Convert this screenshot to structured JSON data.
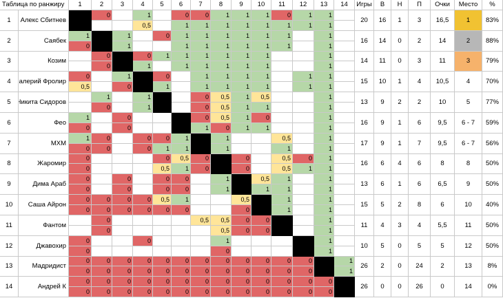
{
  "header": {
    "title": "Таблица по ранжиру",
    "cols": [
      "1",
      "2",
      "3",
      "4",
      "5",
      "6",
      "7",
      "8",
      "9",
      "10",
      "11",
      "12",
      "13",
      "14"
    ],
    "stats": [
      "Игры",
      "В",
      "Н",
      "П",
      "Очки",
      "Место",
      "%"
    ]
  },
  "colors": {
    "win": "#b6d7a8",
    "loss": "#e06666",
    "draw": "#ffe599",
    "gold": "#f1c232",
    "silver": "#b7b7b7",
    "bronze": "#f6b26b"
  },
  "rows": [
    {
      "rank": "1",
      "name": "Алекс Сбитнев",
      "games": "20",
      "w": "16",
      "d": "1",
      "l": "3",
      "pts": "16,5",
      "place": "1",
      "medal": "gold",
      "pct": "83%",
      "r": [
        [
          null,
          null
        ],
        [
          "0",
          null
        ],
        [
          null,
          null
        ],
        [
          "1",
          "0,5"
        ],
        [
          null,
          null
        ],
        [
          "0",
          "1"
        ],
        [
          "0",
          "1"
        ],
        [
          "1",
          "1"
        ],
        [
          "1",
          "1"
        ],
        [
          "1",
          "1"
        ],
        [
          "0",
          "1"
        ],
        [
          "1",
          "1"
        ],
        [
          "1",
          "1"
        ],
        [
          null,
          null
        ]
      ]
    },
    {
      "rank": "2",
      "name": "Саябек",
      "games": "16",
      "w": "14",
      "d": "0",
      "l": "2",
      "pts": "14",
      "place": "2",
      "medal": "silver",
      "pct": "88%",
      "r": [
        [
          "1",
          "0"
        ],
        [
          null,
          null
        ],
        [
          "1",
          "1"
        ],
        [
          null,
          null
        ],
        [
          "0",
          null
        ],
        [
          "1",
          "1"
        ],
        [
          "1",
          "1"
        ],
        [
          "1",
          "1"
        ],
        [
          "1",
          "1"
        ],
        [
          "1",
          "1"
        ],
        [
          "1",
          "1"
        ],
        [
          null,
          null
        ],
        [
          "1",
          "1"
        ],
        [
          null,
          null
        ]
      ]
    },
    {
      "rank": "3",
      "name": "Козим",
      "games": "14",
      "w": "11",
      "d": "0",
      "l": "3",
      "pts": "11",
      "place": "3",
      "medal": "bronze",
      "pct": "79%",
      "r": [
        [
          null,
          null
        ],
        [
          "0",
          "0"
        ],
        [
          null,
          null
        ],
        [
          "0",
          "1"
        ],
        [
          "1",
          null
        ],
        [
          "1",
          "1"
        ],
        [
          "1",
          "1"
        ],
        [
          "1",
          "1"
        ],
        [
          "1",
          "1"
        ],
        [
          "1",
          "1"
        ],
        [
          null,
          null
        ],
        [
          null,
          null
        ],
        [
          "1",
          "1"
        ],
        [
          null,
          null
        ]
      ]
    },
    {
      "rank": "4",
      "name": "Валерий Фролир",
      "games": "15",
      "w": "10",
      "d": "1",
      "l": "4",
      "pts": "10,5",
      "place": "4",
      "medal": null,
      "pct": "70%",
      "r": [
        [
          "0",
          "0,5"
        ],
        [
          null,
          null
        ],
        [
          "1",
          "0"
        ],
        [
          null,
          null
        ],
        [
          "0",
          "1"
        ],
        [
          null,
          null
        ],
        [
          "1",
          "1"
        ],
        [
          "1",
          "1"
        ],
        [
          "1",
          "1"
        ],
        [
          "1",
          "1"
        ],
        [
          null,
          null
        ],
        [
          "1",
          "1"
        ],
        [
          "1",
          "1"
        ],
        [
          null,
          null
        ]
      ]
    },
    {
      "rank": "5",
      "name": "Никита Сидоров",
      "games": "13",
      "w": "9",
      "d": "2",
      "l": "2",
      "pts": "10",
      "place": "5",
      "medal": null,
      "pct": "77%",
      "r": [
        [
          null,
          null
        ],
        [
          "1",
          "0"
        ],
        [
          null,
          null
        ],
        [
          "1",
          "1"
        ],
        [
          null,
          null
        ],
        [
          null,
          null
        ],
        [
          "0",
          "0"
        ],
        [
          "0,5",
          "0,5"
        ],
        [
          "1",
          "1"
        ],
        [
          "0,5",
          "1"
        ],
        [
          null,
          null
        ],
        [
          null,
          null
        ],
        [
          "1",
          "1"
        ],
        [
          null,
          null
        ]
      ]
    },
    {
      "rank": "6",
      "name": "Фео",
      "games": "16",
      "w": "9",
      "d": "1",
      "l": "6",
      "pts": "9,5",
      "place": "6 - 7",
      "medal": null,
      "pct": "59%",
      "r": [
        [
          "1",
          "0"
        ],
        [
          null,
          null
        ],
        [
          "0",
          "0"
        ],
        [
          null,
          null
        ],
        [
          null,
          null
        ],
        [
          null,
          null
        ],
        [
          "0",
          "1"
        ],
        [
          "0,5",
          "0"
        ],
        [
          "1",
          "1"
        ],
        [
          "0",
          "1"
        ],
        [
          null,
          null
        ],
        [
          null,
          null
        ],
        [
          "1",
          "1"
        ],
        [
          null,
          null
        ]
      ]
    },
    {
      "rank": "7",
      "name": "МХМ",
      "games": "17",
      "w": "9",
      "d": "1",
      "l": "7",
      "pts": "9,5",
      "place": "6 - 7",
      "medal": null,
      "pct": "56%",
      "r": [
        [
          "1",
          "0"
        ],
        [
          "0",
          "0"
        ],
        [
          null,
          null
        ],
        [
          "0",
          "0"
        ],
        [
          "0",
          "1"
        ],
        [
          "1",
          "1"
        ],
        [
          null,
          null
        ],
        [
          "1",
          "1"
        ],
        [
          null,
          null
        ],
        [
          null,
          null
        ],
        [
          "0,5",
          "1"
        ],
        [
          null,
          null
        ],
        [
          "1",
          "1"
        ],
        [
          null,
          null
        ]
      ]
    },
    {
      "rank": "8",
      "name": "Жаромир",
      "games": "16",
      "w": "6",
      "d": "4",
      "l": "6",
      "pts": "8",
      "place": "8",
      "medal": null,
      "pct": "50%",
      "r": [
        [
          "0",
          "0"
        ],
        [
          null,
          null
        ],
        [
          null,
          null
        ],
        [
          null,
          null
        ],
        [
          "0",
          "0,5"
        ],
        [
          "0,5",
          "1"
        ],
        [
          "0",
          "0"
        ],
        [
          null,
          null
        ],
        [
          "0",
          "0"
        ],
        [
          null,
          null
        ],
        [
          "0,5",
          "0,5"
        ],
        [
          "0",
          "1"
        ],
        [
          "1",
          "1"
        ],
        [
          null,
          null
        ]
      ]
    },
    {
      "rank": "9",
      "name": "Дима Араб",
      "games": "13",
      "w": "6",
      "d": "1",
      "l": "6",
      "pts": "6,5",
      "place": "9",
      "medal": null,
      "pct": "50%",
      "r": [
        [
          "0",
          "0"
        ],
        [
          null,
          null
        ],
        [
          "0",
          "0"
        ],
        [
          null,
          null
        ],
        [
          "0",
          "0"
        ],
        [
          "0",
          "0"
        ],
        [
          null,
          null
        ],
        [
          "1",
          "1"
        ],
        [
          null,
          null
        ],
        [
          "0,5",
          "1"
        ],
        [
          "1",
          "1"
        ],
        [
          null,
          null
        ],
        [
          "1",
          "1"
        ],
        [
          null,
          null
        ]
      ]
    },
    {
      "rank": "10",
      "name": "Саша Айрон",
      "games": "15",
      "w": "5",
      "d": "2",
      "l": "8",
      "pts": "6",
      "place": "10",
      "medal": null,
      "pct": "40%",
      "r": [
        [
          "0",
          "0"
        ],
        [
          "0",
          "0"
        ],
        [
          "0",
          "0"
        ],
        [
          "0",
          "0"
        ],
        [
          "0,5",
          "0"
        ],
        [
          "1",
          "0"
        ],
        [
          null,
          null
        ],
        [
          null,
          null
        ],
        [
          "0,5",
          "0"
        ],
        [
          null,
          null
        ],
        [
          "1",
          "1"
        ],
        [
          null,
          null
        ],
        [
          "1",
          "1"
        ],
        [
          null,
          null
        ]
      ]
    },
    {
      "rank": "11",
      "name": "Фантом",
      "games": "11",
      "w": "4",
      "d": "3",
      "l": "4",
      "pts": "5,5",
      "place": "11",
      "medal": null,
      "pct": "50%",
      "r": [
        [
          null,
          null
        ],
        [
          "0",
          "0"
        ],
        [
          null,
          null
        ],
        [
          null,
          null
        ],
        [
          null,
          null
        ],
        [
          null,
          null
        ],
        [
          "0,5",
          null
        ],
        [
          "0,5",
          "0,5"
        ],
        [
          "0",
          "0"
        ],
        [
          "0",
          "0"
        ],
        [
          null,
          null
        ],
        [
          null,
          null
        ],
        [
          "1",
          "1"
        ],
        [
          null,
          null
        ]
      ]
    },
    {
      "rank": "12",
      "name": "Джавохир",
      "games": "10",
      "w": "5",
      "d": "0",
      "l": "5",
      "pts": "5",
      "place": "12",
      "medal": null,
      "pct": "50%",
      "r": [
        [
          "0",
          "0"
        ],
        [
          null,
          null
        ],
        [
          null,
          null
        ],
        [
          "0",
          null
        ],
        [
          null,
          null
        ],
        [
          null,
          null
        ],
        [
          null,
          null
        ],
        [
          "1",
          "0"
        ],
        [
          null,
          null
        ],
        [
          null,
          null
        ],
        [
          null,
          null
        ],
        [
          null,
          null
        ],
        [
          "1",
          "1"
        ],
        [
          null,
          null
        ]
      ]
    },
    {
      "rank": "13",
      "name": "Мадридист",
      "games": "26",
      "w": "2",
      "d": "0",
      "l": "24",
      "pts": "2",
      "place": "13",
      "medal": null,
      "pct": "8%",
      "r": [
        [
          "0",
          "0"
        ],
        [
          "0",
          "0"
        ],
        [
          "0",
          "0"
        ],
        [
          "0",
          "0"
        ],
        [
          "0",
          "0"
        ],
        [
          "0",
          "0"
        ],
        [
          "0",
          "0"
        ],
        [
          "0",
          "0"
        ],
        [
          "0",
          "0"
        ],
        [
          "0",
          "0"
        ],
        [
          "0",
          "0"
        ],
        [
          "0",
          "0"
        ],
        [
          null,
          null
        ],
        [
          "1",
          "1"
        ]
      ]
    },
    {
      "rank": "14",
      "name": "Андрей К",
      "games": "26",
      "w": "0",
      "d": "0",
      "l": "26",
      "pts": "0",
      "place": "14",
      "medal": null,
      "pct": "0%",
      "r": [
        [
          "0",
          "0"
        ],
        [
          "0",
          "0"
        ],
        [
          "0",
          "0"
        ],
        [
          "0",
          "0"
        ],
        [
          "0",
          "0"
        ],
        [
          "0",
          "0"
        ],
        [
          "0",
          "0"
        ],
        [
          "0",
          "0"
        ],
        [
          "0",
          "0"
        ],
        [
          "0",
          "0"
        ],
        [
          "0",
          "0"
        ],
        [
          "0",
          "0"
        ],
        [
          "0",
          "0"
        ],
        [
          null,
          null
        ]
      ]
    }
  ]
}
